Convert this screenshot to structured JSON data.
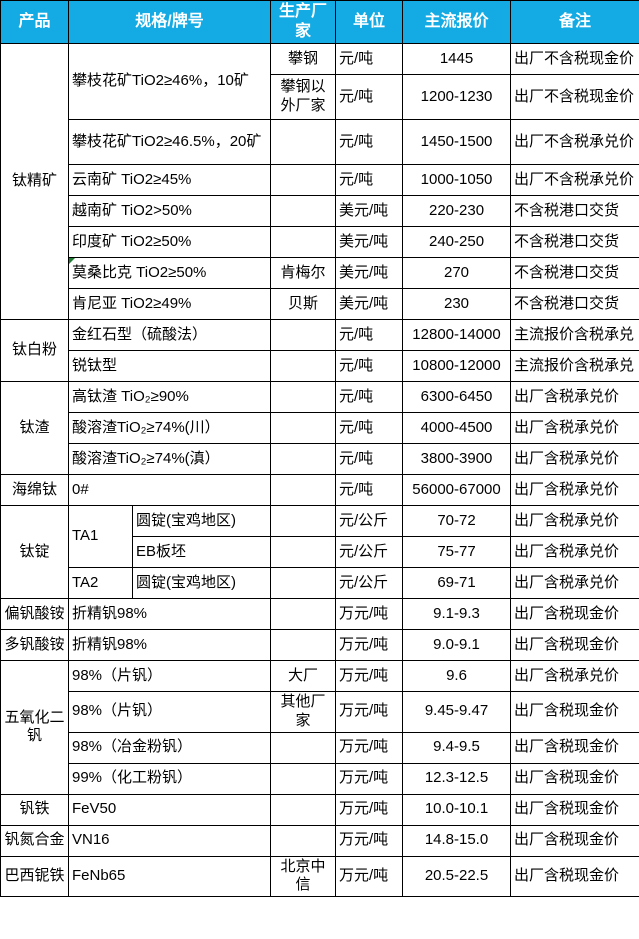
{
  "colors": {
    "header_bg": "#14ABE4",
    "header_text": "#ffffff",
    "grid_line": "#000000",
    "body_text": "#000000",
    "comment_marker": "#1e7e34"
  },
  "table": {
    "header": {
      "product": "产品",
      "spec": "规格/牌号",
      "mfr": "生产厂家",
      "unit": "单位",
      "price": "主流报价",
      "note": "备注"
    },
    "rows": [
      {
        "cells": [
          {
            "col": "product",
            "text": "钛精矿",
            "rowspan": 8
          },
          {
            "col": "spec",
            "text": "攀枝花矿TiO2≥46%，10矿",
            "colspan": 2,
            "rowspan": 2
          },
          {
            "col": "mfr",
            "text": "攀钢"
          },
          {
            "col": "unit",
            "text": "元/吨"
          },
          {
            "col": "price",
            "text": "1445"
          },
          {
            "col": "note",
            "text": "出厂不含税现金价"
          }
        ]
      },
      {
        "h": 45,
        "cells": [
          {
            "col": "mfr",
            "text": "攀钢以外厂家",
            "cls": "small"
          },
          {
            "col": "unit",
            "text": "元/吨"
          },
          {
            "col": "price",
            "text": "1200-1230"
          },
          {
            "col": "note",
            "text": "出厂不含税现金价"
          }
        ]
      },
      {
        "h": 45,
        "cells": [
          {
            "col": "spec",
            "text": "攀枝花矿TiO2≥46.5%，20矿",
            "colspan": 2
          },
          {
            "col": "mfr",
            "text": ""
          },
          {
            "col": "unit",
            "text": "元/吨"
          },
          {
            "col": "price",
            "text": "1450-1500"
          },
          {
            "col": "note",
            "text": "出厂不含税承兑价"
          }
        ]
      },
      {
        "cells": [
          {
            "col": "spec",
            "text": "云南矿 TiO2≥45%",
            "colspan": 2
          },
          {
            "col": "mfr",
            "text": ""
          },
          {
            "col": "unit",
            "text": "元/吨"
          },
          {
            "col": "price",
            "text": "1000-1050"
          },
          {
            "col": "note",
            "text": "出厂不含税承兑价"
          }
        ]
      },
      {
        "cells": [
          {
            "col": "spec",
            "text": "越南矿 TiO2>50%",
            "colspan": 2
          },
          {
            "col": "mfr",
            "text": ""
          },
          {
            "col": "unit",
            "text": "美元/吨"
          },
          {
            "col": "price",
            "text": "220-230"
          },
          {
            "col": "note",
            "text": "不含税港口交货"
          }
        ]
      },
      {
        "cells": [
          {
            "col": "spec",
            "text": "印度矿 TiO2≥50%",
            "colspan": 2
          },
          {
            "col": "mfr",
            "text": ""
          },
          {
            "col": "unit",
            "text": "美元/吨"
          },
          {
            "col": "price",
            "text": "240-250"
          },
          {
            "col": "note",
            "text": "不含税港口交货"
          }
        ]
      },
      {
        "cells": [
          {
            "col": "spec",
            "text": "莫桑比克 TiO2≥50%",
            "colspan": 2,
            "marker": true
          },
          {
            "col": "mfr",
            "text": "肯梅尔"
          },
          {
            "col": "unit",
            "text": "美元/吨"
          },
          {
            "col": "price",
            "text": "270"
          },
          {
            "col": "note",
            "text": "不含税港口交货"
          }
        ]
      },
      {
        "cells": [
          {
            "col": "spec",
            "text": "肯尼亚 TiO2≥49%",
            "colspan": 2
          },
          {
            "col": "mfr",
            "text": "贝斯"
          },
          {
            "col": "unit",
            "text": "美元/吨"
          },
          {
            "col": "price",
            "text": "230"
          },
          {
            "col": "note",
            "text": "不含税港口交货"
          }
        ]
      },
      {
        "cells": [
          {
            "col": "product",
            "text": "钛白粉",
            "rowspan": 2
          },
          {
            "col": "spec",
            "text": "金红石型（硫酸法）",
            "colspan": 2
          },
          {
            "col": "mfr",
            "text": ""
          },
          {
            "col": "unit",
            "text": "元/吨"
          },
          {
            "col": "price",
            "text": "12800-14000"
          },
          {
            "col": "note",
            "text": "主流报价含税承兑"
          }
        ]
      },
      {
        "cells": [
          {
            "col": "spec",
            "text": "锐钛型",
            "colspan": 2
          },
          {
            "col": "mfr",
            "text": ""
          },
          {
            "col": "unit",
            "text": "元/吨"
          },
          {
            "col": "price",
            "text": "10800-12000"
          },
          {
            "col": "note",
            "text": "主流报价含税承兑"
          }
        ]
      },
      {
        "cells": [
          {
            "col": "product",
            "text": "钛渣",
            "rowspan": 3
          },
          {
            "col": "spec",
            "text": "高钛渣 TiO₂≥90%",
            "colspan": 2
          },
          {
            "col": "mfr",
            "text": ""
          },
          {
            "col": "unit",
            "text": "元/吨"
          },
          {
            "col": "price",
            "text": "6300-6450"
          },
          {
            "col": "note",
            "text": "出厂含税承兑价"
          }
        ]
      },
      {
        "cells": [
          {
            "col": "spec",
            "text": "酸溶渣TiO₂≥74%(川）",
            "colspan": 2
          },
          {
            "col": "mfr",
            "text": ""
          },
          {
            "col": "unit",
            "text": "元/吨"
          },
          {
            "col": "price",
            "text": "4000-4500"
          },
          {
            "col": "note",
            "text": "出厂含税承兑价"
          }
        ]
      },
      {
        "cells": [
          {
            "col": "spec",
            "text": "酸溶渣TiO₂≥74%(滇）",
            "colspan": 2
          },
          {
            "col": "mfr",
            "text": ""
          },
          {
            "col": "unit",
            "text": "元/吨"
          },
          {
            "col": "price",
            "text": "3800-3900"
          },
          {
            "col": "note",
            "text": "出厂含税承兑价"
          }
        ]
      },
      {
        "cells": [
          {
            "col": "product",
            "text": "海绵钛"
          },
          {
            "col": "spec",
            "text": "0#",
            "colspan": 2
          },
          {
            "col": "mfr",
            "text": ""
          },
          {
            "col": "unit",
            "text": "元/吨"
          },
          {
            "col": "price",
            "text": "56000-67000"
          },
          {
            "col": "note",
            "text": "出厂含税承兑价"
          }
        ]
      },
      {
        "cells": [
          {
            "col": "product",
            "text": "钛锭",
            "rowspan": 3
          },
          {
            "col": "speca",
            "text": "TA1",
            "rowspan": 2
          },
          {
            "col": "specb",
            "text": "圆锭(宝鸡地区)"
          },
          {
            "col": "mfr",
            "text": ""
          },
          {
            "col": "unit",
            "text": "元/公斤"
          },
          {
            "col": "price",
            "text": "70-72"
          },
          {
            "col": "note",
            "text": "出厂含税承兑价"
          }
        ]
      },
      {
        "cells": [
          {
            "col": "specb",
            "text": "EB板坯"
          },
          {
            "col": "mfr",
            "text": ""
          },
          {
            "col": "unit",
            "text": "元/公斤"
          },
          {
            "col": "price",
            "text": "75-77"
          },
          {
            "col": "note",
            "text": "出厂含税承兑价"
          }
        ]
      },
      {
        "cells": [
          {
            "col": "speca",
            "text": "TA2"
          },
          {
            "col": "specb",
            "text": "圆锭(宝鸡地区)"
          },
          {
            "col": "mfr",
            "text": ""
          },
          {
            "col": "unit",
            "text": "元/公斤"
          },
          {
            "col": "price",
            "text": "69-71"
          },
          {
            "col": "note",
            "text": "出厂含税承兑价"
          }
        ]
      },
      {
        "cells": [
          {
            "col": "product",
            "text": "偏钒酸铵"
          },
          {
            "col": "spec",
            "text": "折精钒98%",
            "colspan": 2
          },
          {
            "col": "mfr",
            "text": ""
          },
          {
            "col": "unit",
            "text": "万元/吨"
          },
          {
            "col": "price",
            "text": "9.1-9.3"
          },
          {
            "col": "note",
            "text": "出厂含税现金价"
          }
        ]
      },
      {
        "cells": [
          {
            "col": "product",
            "text": "多钒酸铵"
          },
          {
            "col": "spec",
            "text": "折精钒98%",
            "colspan": 2
          },
          {
            "col": "mfr",
            "text": ""
          },
          {
            "col": "unit",
            "text": "万元/吨"
          },
          {
            "col": "price",
            "text": "9.0-9.1"
          },
          {
            "col": "note",
            "text": "出厂含税现金价"
          }
        ]
      },
      {
        "cells": [
          {
            "col": "product",
            "text": "五氧化二钒",
            "rowspan": 4
          },
          {
            "col": "spec",
            "text": "98%（片钒）",
            "colspan": 2
          },
          {
            "col": "mfr",
            "text": "大厂"
          },
          {
            "col": "unit",
            "text": "万元/吨"
          },
          {
            "col": "price",
            "text": "9.6"
          },
          {
            "col": "note",
            "text": "出厂含税承兑价"
          }
        ]
      },
      {
        "cells": [
          {
            "col": "spec",
            "text": "98%（片钒）",
            "colspan": 2
          },
          {
            "col": "mfr",
            "text": "其他厂家"
          },
          {
            "col": "unit",
            "text": "万元/吨"
          },
          {
            "col": "price",
            "text": "9.45-9.47"
          },
          {
            "col": "note",
            "text": "出厂含税现金价"
          }
        ]
      },
      {
        "cells": [
          {
            "col": "spec",
            "text": "98%（冶金粉钒）",
            "colspan": 2
          },
          {
            "col": "mfr",
            "text": ""
          },
          {
            "col": "unit",
            "text": "万元/吨"
          },
          {
            "col": "price",
            "text": "9.4-9.5"
          },
          {
            "col": "note",
            "text": "出厂含税现金价"
          }
        ]
      },
      {
        "cells": [
          {
            "col": "spec",
            "text": "99%（化工粉钒）",
            "colspan": 2
          },
          {
            "col": "mfr",
            "text": ""
          },
          {
            "col": "unit",
            "text": "万元/吨"
          },
          {
            "col": "price",
            "text": "12.3-12.5"
          },
          {
            "col": "note",
            "text": "出厂含税现金价"
          }
        ]
      },
      {
        "cells": [
          {
            "col": "product",
            "text": "钒铁"
          },
          {
            "col": "spec",
            "text": "FeV50",
            "colspan": 2
          },
          {
            "col": "mfr",
            "text": ""
          },
          {
            "col": "unit",
            "text": "万元/吨"
          },
          {
            "col": "price",
            "text": "10.0-10.1"
          },
          {
            "col": "note",
            "text": "出厂含税现金价"
          }
        ]
      },
      {
        "cells": [
          {
            "col": "product",
            "text": "钒氮合金"
          },
          {
            "col": "spec",
            "text": "VN16",
            "colspan": 2
          },
          {
            "col": "mfr",
            "text": ""
          },
          {
            "col": "unit",
            "text": "万元/吨"
          },
          {
            "col": "price",
            "text": "14.8-15.0"
          },
          {
            "col": "note",
            "text": "出厂含税现金价"
          }
        ]
      },
      {
        "cells": [
          {
            "col": "product",
            "text": "巴西铌铁"
          },
          {
            "col": "spec",
            "text": "FeNb65",
            "colspan": 2
          },
          {
            "col": "mfr",
            "text": "北京中信"
          },
          {
            "col": "unit",
            "text": "万元/吨"
          },
          {
            "col": "price",
            "text": "20.5-22.5"
          },
          {
            "col": "note",
            "text": "出厂含税现金价"
          }
        ]
      }
    ]
  }
}
